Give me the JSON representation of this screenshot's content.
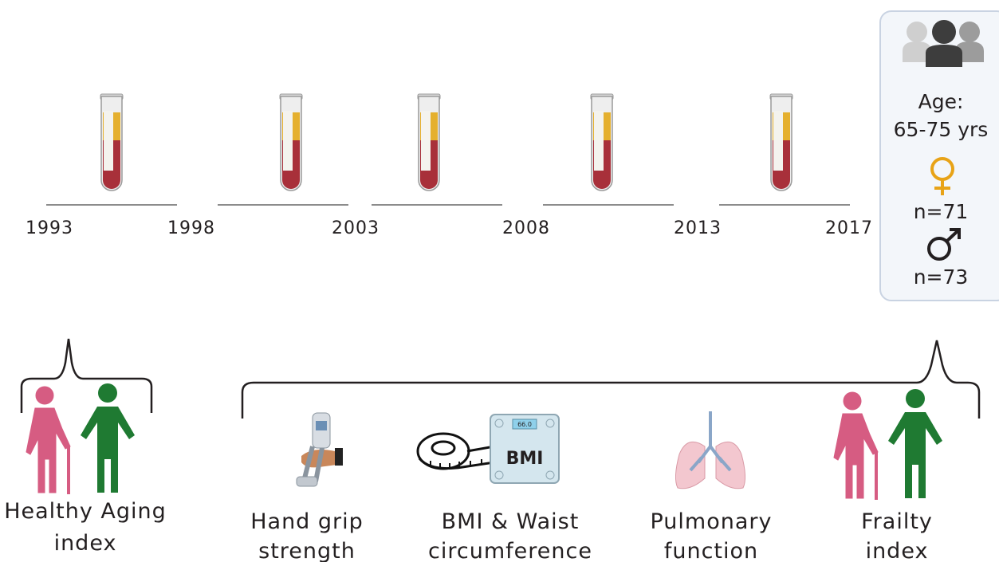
{
  "timeline": {
    "years": [
      "1993",
      "1998",
      "2003",
      "2008",
      "2013",
      "2017"
    ]
  },
  "cohort": {
    "age_label": "Age:",
    "age_range": "65-75 yrs",
    "female_count": "n=71",
    "male_count": "n=73"
  },
  "baseline": {
    "label_lines": [
      "Healthy Aging",
      "index"
    ]
  },
  "measures": [
    {
      "label_lines": [
        "Hand grip",
        "strength"
      ]
    },
    {
      "label_lines": [
        "BMI & Waist",
        "circumference"
      ],
      "scale_display": "66.0",
      "scale_text": "BMI"
    },
    {
      "label_lines": [
        "Pulmonary",
        "function"
      ]
    },
    {
      "label_lines": [
        "Frailty",
        "index"
      ]
    }
  ]
}
